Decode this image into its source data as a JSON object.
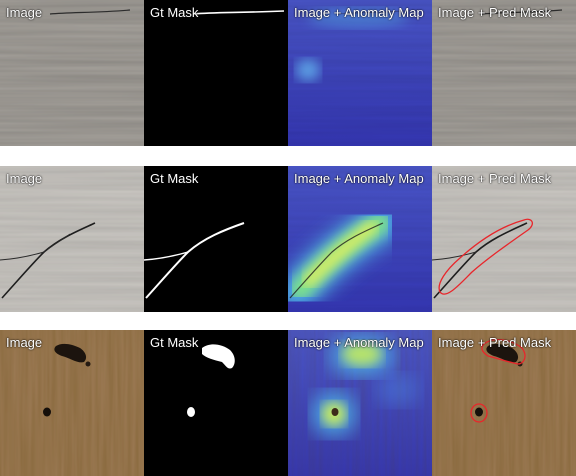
{
  "labels": {
    "image": "Image",
    "gt_mask": "Gt Mask",
    "anomaly_map": "Image + Anomaly Map",
    "pred_mask": "Image + Pred Mask"
  },
  "rows": [
    {
      "texture": "grey-wood",
      "defect": "crack"
    },
    {
      "texture": "light-grey-wood",
      "defect": "crack"
    },
    {
      "texture": "brown-wood",
      "defect": "hole"
    }
  ],
  "colors": {
    "grey_wood": "#a7a39d",
    "light_grey_wood": "#cbc8c3",
    "brown_wood": "#9c7a55",
    "mask_fg": "#ffffff",
    "mask_bg": "#000000",
    "heatmap_base": "#3d3fbf",
    "pred_contour": "#e8262b"
  }
}
